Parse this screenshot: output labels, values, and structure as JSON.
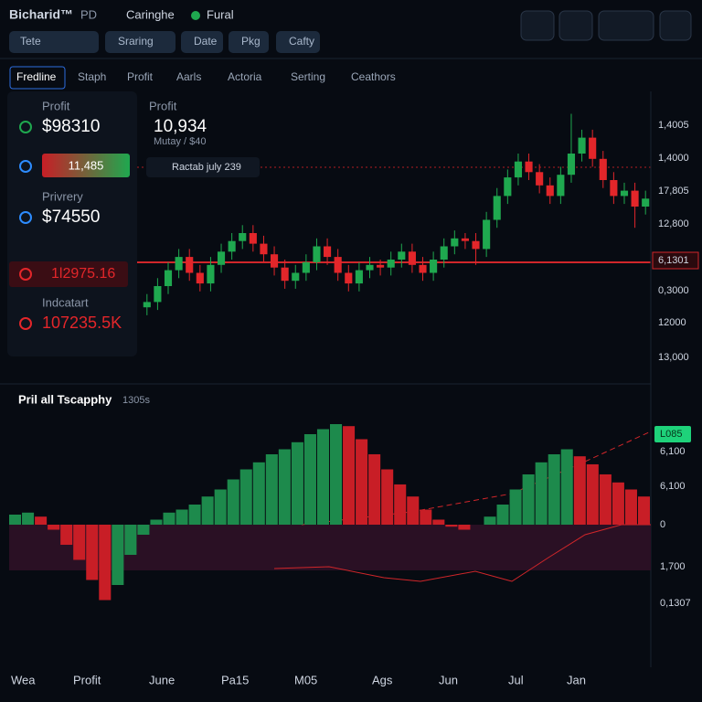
{
  "header": {
    "logo": "Bicharid™",
    "pd": "PD",
    "link1": "Caringhe",
    "link2": "Fural"
  },
  "toolbar": [
    "Tete",
    "Sraring",
    "Date",
    "Pkg",
    "Cafty"
  ],
  "tabs": [
    "Fredline",
    "Staph",
    "Profit",
    "Aarls",
    "Actoria",
    "Serting",
    "Ceathors"
  ],
  "panel": {
    "profit_label": "Profit",
    "profit_value": "$98310",
    "bar_value": "11,485",
    "privrery_label": "Privrery",
    "privrery_value": "$74550",
    "loss_value": "1l2975.16",
    "indicator_label": "Indcatart",
    "indicator_value": "107235.5K"
  },
  "main_chart": {
    "type": "candlestick",
    "label": "Profit",
    "value": "10,934",
    "sub": "Mutay / $40",
    "tooltip": "Ractab july 239",
    "ylim": [
      0,
      100
    ],
    "up_color": "#1fa84f",
    "down_color": "#e3262a",
    "candles": [
      [
        22,
        27,
        19,
        24
      ],
      [
        24,
        33,
        21,
        30
      ],
      [
        30,
        39,
        27,
        36
      ],
      [
        36,
        44,
        33,
        41
      ],
      [
        41,
        44,
        32,
        35
      ],
      [
        35,
        38,
        28,
        31
      ],
      [
        31,
        41,
        28,
        38
      ],
      [
        38,
        46,
        35,
        43
      ],
      [
        43,
        50,
        40,
        47
      ],
      [
        47,
        53,
        44,
        50
      ],
      [
        50,
        53,
        43,
        46
      ],
      [
        46,
        49,
        39,
        42
      ],
      [
        42,
        45,
        34,
        37
      ],
      [
        37,
        40,
        29,
        32
      ],
      [
        32,
        38,
        29,
        35
      ],
      [
        35,
        42,
        32,
        39
      ],
      [
        39,
        48,
        36,
        45
      ],
      [
        45,
        48,
        38,
        41
      ],
      [
        41,
        44,
        32,
        35
      ],
      [
        35,
        38,
        28,
        31
      ],
      [
        31,
        39,
        28,
        36
      ],
      [
        36,
        41,
        33,
        38
      ],
      [
        38,
        40,
        34,
        37
      ],
      [
        37,
        43,
        34,
        40
      ],
      [
        40,
        46,
        37,
        43
      ],
      [
        43,
        46,
        35,
        38
      ],
      [
        38,
        41,
        32,
        35
      ],
      [
        35,
        43,
        32,
        40
      ],
      [
        40,
        48,
        37,
        45
      ],
      [
        45,
        51,
        42,
        48
      ],
      [
        48,
        50,
        44,
        47
      ],
      [
        47,
        50,
        38,
        44
      ],
      [
        44,
        58,
        41,
        55
      ],
      [
        55,
        67,
        52,
        64
      ],
      [
        64,
        74,
        61,
        71
      ],
      [
        71,
        80,
        68,
        77
      ],
      [
        77,
        80,
        70,
        73
      ],
      [
        73,
        76,
        65,
        68
      ],
      [
        68,
        71,
        61,
        64
      ],
      [
        64,
        75,
        61,
        72
      ],
      [
        72,
        95,
        69,
        80
      ],
      [
        80,
        89,
        77,
        86
      ],
      [
        86,
        89,
        75,
        78
      ],
      [
        78,
        81,
        67,
        70
      ],
      [
        70,
        73,
        61,
        64
      ],
      [
        64,
        69,
        61,
        66
      ],
      [
        66,
        69,
        52,
        60
      ],
      [
        60,
        66,
        57,
        63
      ]
    ],
    "axis_labels": [
      "1,4005",
      "1,4000",
      "17,805",
      "12,800",
      "6,1301",
      "0,3000",
      "12000",
      "13,000"
    ]
  },
  "lower_chart": {
    "type": "bar",
    "title": "Pril all Tscapphy",
    "title_note": "1305s",
    "ylim": [
      -100,
      100
    ],
    "up_color": "#1d8a4c",
    "down_color": "#c81e26",
    "values": [
      10,
      12,
      8,
      -5,
      -20,
      -35,
      -55,
      -75,
      -60,
      -30,
      -10,
      5,
      12,
      15,
      20,
      28,
      35,
      45,
      55,
      62,
      70,
      75,
      82,
      90,
      95,
      100,
      98,
      85,
      70,
      55,
      40,
      28,
      15,
      5,
      -2,
      -5,
      0,
      8,
      20,
      35,
      50,
      62,
      70,
      75,
      68,
      60,
      50,
      42,
      35,
      28
    ],
    "axis_labels": [
      "L085",
      "6,100",
      "6,100",
      "0",
      "1,700",
      "0,1307"
    ]
  },
  "x_labels": [
    "Wea",
    "Profit",
    "June",
    "Pa15",
    "M05",
    "Ags",
    "Jun",
    "Jul",
    "Jan"
  ]
}
